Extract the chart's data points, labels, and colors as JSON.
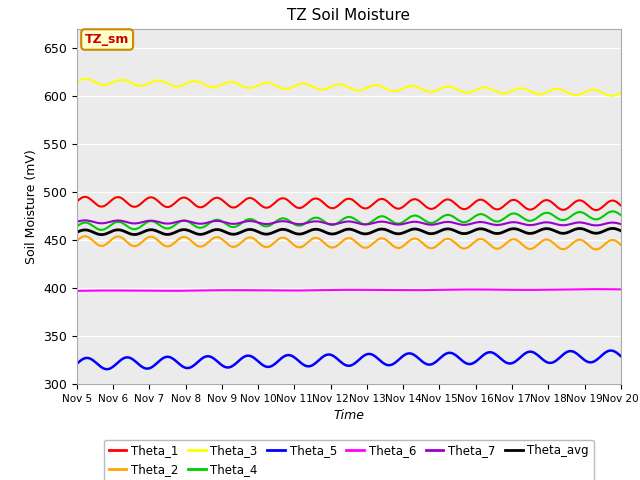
{
  "title": "TZ Soil Moisture",
  "xlabel": "Time",
  "ylabel": "Soil Moisture (mV)",
  "ylim": [
    300,
    670
  ],
  "yticks": [
    300,
    350,
    400,
    450,
    500,
    550,
    600,
    650
  ],
  "x_start": 5,
  "x_end": 20,
  "num_points": 500,
  "series": [
    {
      "name": "Theta_1",
      "color": "#ff0000",
      "base": 490,
      "amp": 5,
      "freq": 1.1,
      "trend": -0.5,
      "lw": 1.5
    },
    {
      "name": "Theta_2",
      "color": "#ffa500",
      "base": 449,
      "amp": 5,
      "freq": 1.1,
      "trend": -0.5,
      "lw": 1.5
    },
    {
      "name": "Theta_3",
      "color": "#ffff00",
      "base": 615,
      "amp": 3,
      "freq": 1.0,
      "trend": -1.5,
      "lw": 1.5
    },
    {
      "name": "Theta_4",
      "color": "#00cc00",
      "base": 464,
      "amp": 4,
      "freq": 1.1,
      "trend": 1.5,
      "lw": 1.5
    },
    {
      "name": "Theta_5",
      "color": "#0000ff",
      "base": 321,
      "amp": 6,
      "freq": 0.9,
      "trend": 1.0,
      "lw": 1.8
    },
    {
      "name": "Theta_6",
      "color": "#ff00ff",
      "base": 397,
      "amp": 0.3,
      "freq": 0.3,
      "trend": 0.2,
      "lw": 1.5
    },
    {
      "name": "Theta_7",
      "color": "#9900cc",
      "base": 469,
      "amp": 1.5,
      "freq": 1.1,
      "trend": -0.3,
      "lw": 1.5
    },
    {
      "name": "Theta_avg",
      "color": "#000000",
      "base": 458,
      "amp": 2.5,
      "freq": 1.1,
      "trend": 0.2,
      "lw": 2.0
    }
  ],
  "bg_color": "#ebebeb",
  "annotation_text": "TZ_sm",
  "annotation_color": "#cc0000",
  "annotation_facecolor": "#ffffcc",
  "annotation_edgecolor": "#cc8800",
  "xtick_labels": [
    "Nov 5",
    "Nov 6",
    "Nov 7",
    "Nov 8",
    "Nov 9",
    "Nov 10",
    "Nov 11",
    "Nov 12",
    "Nov 13",
    "Nov 14",
    "Nov 15",
    "Nov 16",
    "Nov 17",
    "Nov 18",
    "Nov 19",
    "Nov 20"
  ],
  "xtick_positions": [
    5,
    6,
    7,
    8,
    9,
    10,
    11,
    12,
    13,
    14,
    15,
    16,
    17,
    18,
    19,
    20
  ]
}
